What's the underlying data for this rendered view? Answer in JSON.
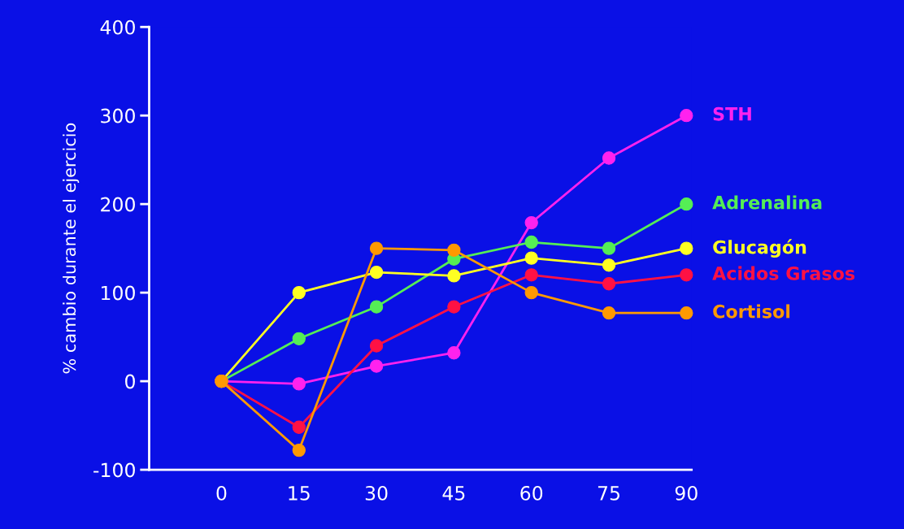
{
  "chart_data": {
    "type": "line",
    "ylabel": "% cambio durante el ejercicio",
    "x": [
      0,
      15,
      30,
      45,
      60,
      75,
      90
    ],
    "xlim": [
      -14,
      91
    ],
    "xticks": [
      0,
      15,
      30,
      45,
      60,
      75,
      90
    ],
    "ylim": [
      -100,
      400
    ],
    "yticks": [
      -100,
      0,
      100,
      200,
      300,
      400
    ],
    "grid": false,
    "legend": false,
    "marker": "circle",
    "line_style": "solid",
    "series": [
      {
        "name": "STH",
        "color": "#ff22ee",
        "values": [
          0,
          -3,
          17,
          32,
          179,
          252,
          300
        ]
      },
      {
        "name": "Adrenalina",
        "color": "#55ee55",
        "values": [
          0,
          48,
          84,
          138,
          157,
          150,
          200
        ]
      },
      {
        "name": "Glucagón",
        "color": "#ffff22",
        "values": [
          0,
          100,
          123,
          119,
          139,
          131,
          150
        ]
      },
      {
        "name": "Acidos Grasos",
        "color": "#ff1144",
        "values": [
          0,
          -52,
          40,
          84,
          120,
          110,
          120
        ]
      },
      {
        "name": "Cortisol",
        "color": "#ff9900",
        "values": [
          0,
          -78,
          150,
          148,
          100,
          77,
          77
        ]
      }
    ]
  }
}
